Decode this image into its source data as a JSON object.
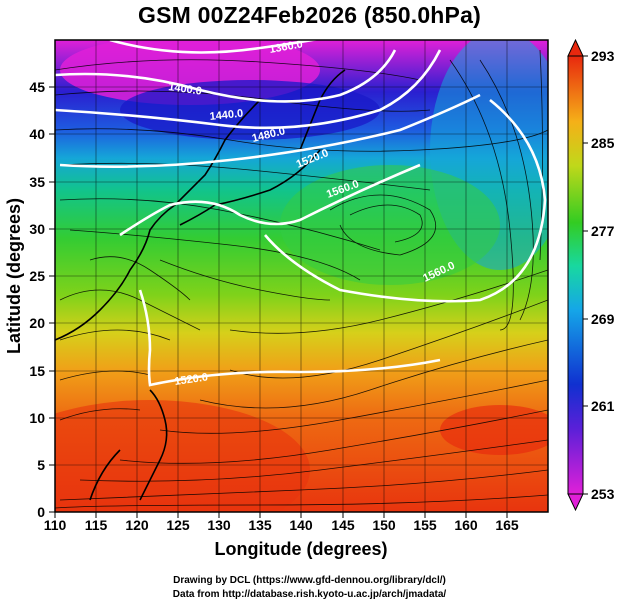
{
  "title": "GSM 00Z24Feb2026 (850.0hPa)",
  "axes": {
    "xlabel": "Longitude (degrees)",
    "ylabel": "Latitude  (degrees)",
    "xlim": [
      110,
      170
    ],
    "ylim": [
      0,
      50
    ],
    "xticks": [
      "110",
      "115",
      "120",
      "125",
      "130",
      "135",
      "140",
      "145",
      "150",
      "155",
      "160",
      "165"
    ],
    "yticks": [
      "0",
      "5",
      "10",
      "15",
      "20",
      "25",
      "30",
      "35",
      "40",
      "45"
    ]
  },
  "colorbar": {
    "min": 253,
    "max": 293,
    "ticks": [
      "293",
      "285",
      "277",
      "269",
      "261",
      "253"
    ]
  },
  "contour_labels": [
    "1360.0",
    "1400.0",
    "1440.0",
    "1480.0",
    "1520.0",
    "1560.0",
    "1560.0",
    "1520.0"
  ],
  "credits": {
    "line1": "Drawing by DCL (https://www.gfd-dennou.org/library/dcl/)",
    "line2": "Data from http://database.rish.kyoto-u.ac.jp/arch/jmadata/"
  },
  "colors": {
    "warm": "#e8280e",
    "cold": "#0a0fc8",
    "polar": "#e020d8"
  }
}
